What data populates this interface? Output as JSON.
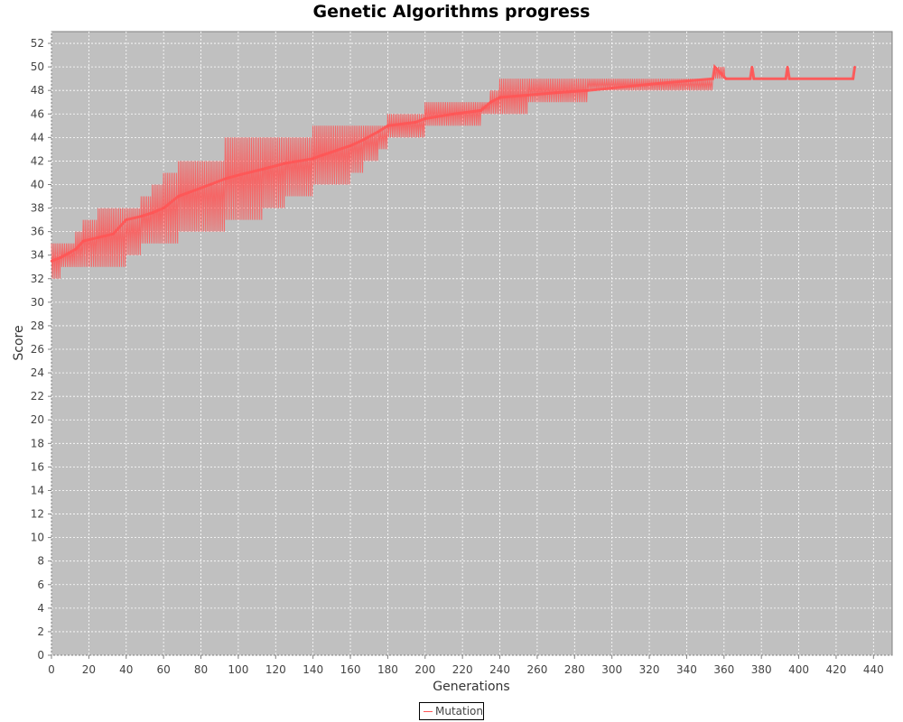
{
  "chart_data": {
    "type": "line",
    "title": "Genetic Algorithms progress",
    "xlabel": "Generations",
    "ylabel": "Score",
    "xlim": [
      0,
      450
    ],
    "ylim": [
      0,
      53
    ],
    "xticks": [
      0,
      20,
      40,
      60,
      80,
      100,
      120,
      140,
      160,
      180,
      200,
      220,
      240,
      260,
      280,
      300,
      320,
      340,
      360,
      380,
      400,
      420,
      440
    ],
    "yticks": [
      0,
      2,
      4,
      6,
      8,
      10,
      12,
      14,
      16,
      18,
      20,
      22,
      24,
      26,
      28,
      30,
      32,
      34,
      36,
      38,
      40,
      42,
      44,
      46,
      48,
      50,
      52
    ],
    "grid": true,
    "legend": "bottom-center",
    "colors": {
      "plot_background": "#c0c0c0",
      "series": "#ff5555",
      "grid": "#ffffff"
    },
    "series": [
      {
        "name": "Mutation",
        "note_range": "per-generation score oscillation between envelope min and max",
        "x": [
          0,
          5,
          13,
          17,
          25,
          33,
          40,
          48,
          54,
          60,
          68,
          85,
          93,
          100,
          113,
          125,
          140,
          145,
          160,
          167,
          175,
          180,
          195,
          200,
          215,
          230,
          235,
          240,
          255,
          270,
          287,
          300,
          325,
          340,
          354,
          355,
          361,
          374,
          375,
          376,
          393,
          394,
          395,
          420,
          429,
          430
        ],
        "min": [
          32,
          33,
          33,
          33,
          33,
          33,
          34,
          35,
          35,
          35,
          36,
          36,
          37,
          37,
          38,
          39,
          40,
          40,
          41,
          42,
          43,
          44,
          44,
          45,
          45,
          46,
          46,
          46,
          47,
          47,
          48,
          48,
          48,
          48,
          49,
          49,
          49,
          49,
          49,
          49,
          49,
          49,
          49,
          49,
          49,
          49
        ],
        "max": [
          35,
          35,
          36,
          37,
          38,
          38,
          38,
          39,
          40,
          41,
          42,
          42,
          44,
          44,
          44,
          44,
          45,
          45,
          45,
          45,
          45,
          46,
          46,
          47,
          47,
          47,
          48,
          49,
          49,
          49,
          49,
          49,
          49,
          49,
          49,
          50,
          49,
          49,
          50,
          49,
          49,
          50,
          49,
          49,
          49,
          50
        ],
        "avg": [
          33.5,
          33.8,
          34.5,
          35.2,
          35.5,
          35.8,
          37,
          37.3,
          37.6,
          38,
          39,
          40,
          40.5,
          40.8,
          41.3,
          41.8,
          42.2,
          42.5,
          43.3,
          43.8,
          44.5,
          45,
          45.3,
          45.6,
          46,
          46.3,
          47,
          47.4,
          47.6,
          47.8,
          48,
          48.2,
          48.6,
          48.8,
          49,
          50,
          49,
          49,
          50,
          49,
          49,
          50,
          49,
          49,
          49,
          50
        ]
      }
    ]
  }
}
